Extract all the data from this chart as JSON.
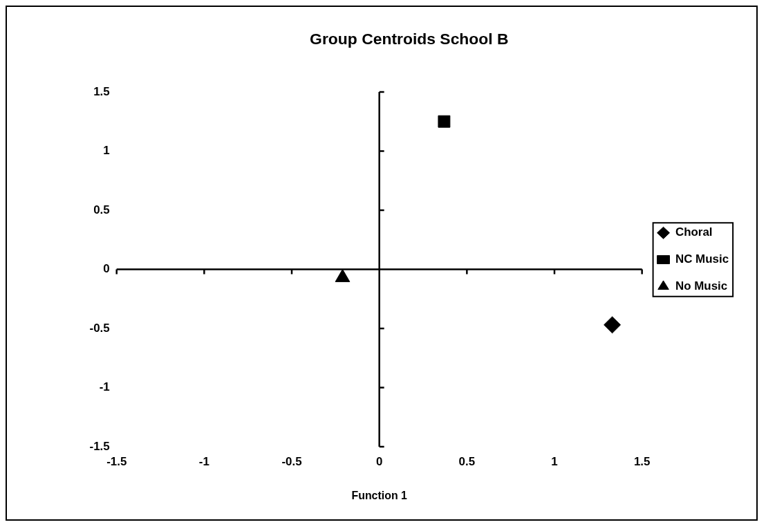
{
  "chart_data": {
    "type": "scatter",
    "title": "Group Centroids School B",
    "xlabel": "Function 1",
    "xlim": [
      -1.5,
      1.5
    ],
    "xticks": [
      -1.5,
      -1,
      -0.5,
      0,
      0.5,
      1,
      1.5
    ],
    "ylim": [
      -1.5,
      1.5
    ],
    "yticks": [
      -1.5,
      -1,
      -0.5,
      0,
      0.5,
      1,
      1.5
    ],
    "legend": "right",
    "series": [
      {
        "name": "Choral",
        "color": "#000000",
        "marker": "diamond",
        "x": [
          1.33
        ],
        "values": [
          -0.47
        ]
      },
      {
        "name": "NC Music",
        "color": "#000000",
        "marker": "square",
        "x": [
          0.37
        ],
        "values": [
          1.25
        ]
      },
      {
        "name": "No Music",
        "color": "#000000",
        "marker": "triangle",
        "x": [
          -0.21
        ],
        "values": [
          -0.07
        ]
      }
    ]
  }
}
